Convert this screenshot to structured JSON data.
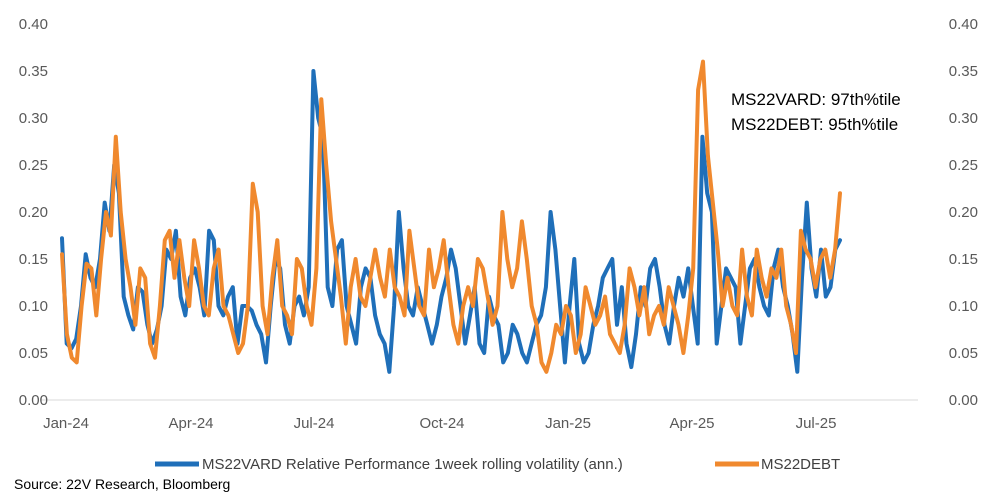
{
  "chart_data": {
    "type": "line",
    "x_labels": [
      "Jan-24",
      "Apr-24",
      "Jul-24",
      "Oct-24",
      "Jan-25",
      "Apr-25",
      "Jul-25"
    ],
    "ylim": [
      0.0,
      0.4
    ],
    "y_ticks": [
      "0.00",
      "0.05",
      "0.10",
      "0.15",
      "0.20",
      "0.25",
      "0.30",
      "0.35",
      "0.40"
    ],
    "grid": false,
    "legend_position": "bottom",
    "annotations": [
      "MS22VARD: 97th%tile",
      "MS22DEBT: 95th%tile"
    ],
    "source": "Source: 22V Research, Bloomberg",
    "series": [
      {
        "name": "MS22VARD Relative Performance 1week rolling volatility  (ann.)",
        "color": "#1f6fb9",
        "values": [
          0.172,
          0.06,
          0.055,
          0.065,
          0.1,
          0.155,
          0.13,
          0.12,
          0.15,
          0.21,
          0.18,
          0.25,
          0.22,
          0.11,
          0.09,
          0.075,
          0.12,
          0.115,
          0.08,
          0.06,
          0.075,
          0.1,
          0.16,
          0.15,
          0.18,
          0.11,
          0.09,
          0.13,
          0.14,
          0.12,
          0.09,
          0.18,
          0.17,
          0.1,
          0.09,
          0.11,
          0.12,
          0.06,
          0.1,
          0.1,
          0.095,
          0.08,
          0.07,
          0.04,
          0.1,
          0.15,
          0.14,
          0.08,
          0.06,
          0.1,
          0.11,
          0.09,
          0.12,
          0.35,
          0.3,
          0.28,
          0.12,
          0.1,
          0.16,
          0.17,
          0.1,
          0.08,
          0.06,
          0.12,
          0.14,
          0.13,
          0.09,
          0.07,
          0.06,
          0.03,
          0.1,
          0.2,
          0.14,
          0.1,
          0.09,
          0.12,
          0.1,
          0.08,
          0.06,
          0.08,
          0.11,
          0.13,
          0.16,
          0.14,
          0.1,
          0.06,
          0.09,
          0.12,
          0.06,
          0.05,
          0.11,
          0.09,
          0.08,
          0.04,
          0.05,
          0.08,
          0.07,
          0.05,
          0.04,
          0.06,
          0.08,
          0.09,
          0.12,
          0.2,
          0.16,
          0.1,
          0.04,
          0.1,
          0.15,
          0.06,
          0.04,
          0.05,
          0.08,
          0.1,
          0.13,
          0.14,
          0.15,
          0.08,
          0.12,
          0.06,
          0.035,
          0.07,
          0.12,
          0.1,
          0.14,
          0.15,
          0.12,
          0.08,
          0.06,
          0.1,
          0.13,
          0.11,
          0.14,
          0.1,
          0.06,
          0.28,
          0.22,
          0.2,
          0.06,
          0.1,
          0.14,
          0.13,
          0.12,
          0.06,
          0.1,
          0.14,
          0.15,
          0.12,
          0.1,
          0.09,
          0.14,
          0.16,
          0.12,
          0.1,
          0.07,
          0.03,
          0.13,
          0.21,
          0.14,
          0.11,
          0.16,
          0.11,
          0.12,
          0.16,
          0.17
        ]
      },
      {
        "name": "MS22DEBT",
        "color": "#f0892e",
        "values": [
          0.155,
          0.07,
          0.045,
          0.04,
          0.1,
          0.145,
          0.14,
          0.09,
          0.15,
          0.2,
          0.175,
          0.28,
          0.2,
          0.15,
          0.12,
          0.08,
          0.14,
          0.13,
          0.06,
          0.045,
          0.1,
          0.17,
          0.18,
          0.13,
          0.17,
          0.13,
          0.1,
          0.17,
          0.14,
          0.1,
          0.09,
          0.14,
          0.16,
          0.1,
          0.09,
          0.07,
          0.05,
          0.06,
          0.1,
          0.23,
          0.2,
          0.1,
          0.07,
          0.13,
          0.17,
          0.1,
          0.09,
          0.07,
          0.15,
          0.14,
          0.1,
          0.08,
          0.14,
          0.32,
          0.25,
          0.19,
          0.15,
          0.11,
          0.06,
          0.12,
          0.15,
          0.11,
          0.1,
          0.13,
          0.16,
          0.13,
          0.11,
          0.16,
          0.12,
          0.11,
          0.09,
          0.18,
          0.14,
          0.1,
          0.09,
          0.16,
          0.12,
          0.14,
          0.17,
          0.12,
          0.08,
          0.06,
          0.1,
          0.12,
          0.1,
          0.15,
          0.14,
          0.11,
          0.08,
          0.1,
          0.2,
          0.15,
          0.12,
          0.14,
          0.19,
          0.15,
          0.1,
          0.08,
          0.04,
          0.03,
          0.05,
          0.08,
          0.07,
          0.1,
          0.09,
          0.05,
          0.07,
          0.12,
          0.1,
          0.08,
          0.09,
          0.11,
          0.07,
          0.06,
          0.05,
          0.08,
          0.14,
          0.12,
          0.09,
          0.12,
          0.07,
          0.09,
          0.1,
          0.08,
          0.12,
          0.1,
          0.08,
          0.05,
          0.09,
          0.14,
          0.33,
          0.36,
          0.26,
          0.21,
          0.16,
          0.1,
          0.13,
          0.1,
          0.09,
          0.16,
          0.11,
          0.09,
          0.16,
          0.13,
          0.11,
          0.14,
          0.13,
          0.16,
          0.1,
          0.08,
          0.05,
          0.18,
          0.16,
          0.15,
          0.12,
          0.15,
          0.16,
          0.13,
          0.16,
          0.22
        ]
      }
    ]
  }
}
